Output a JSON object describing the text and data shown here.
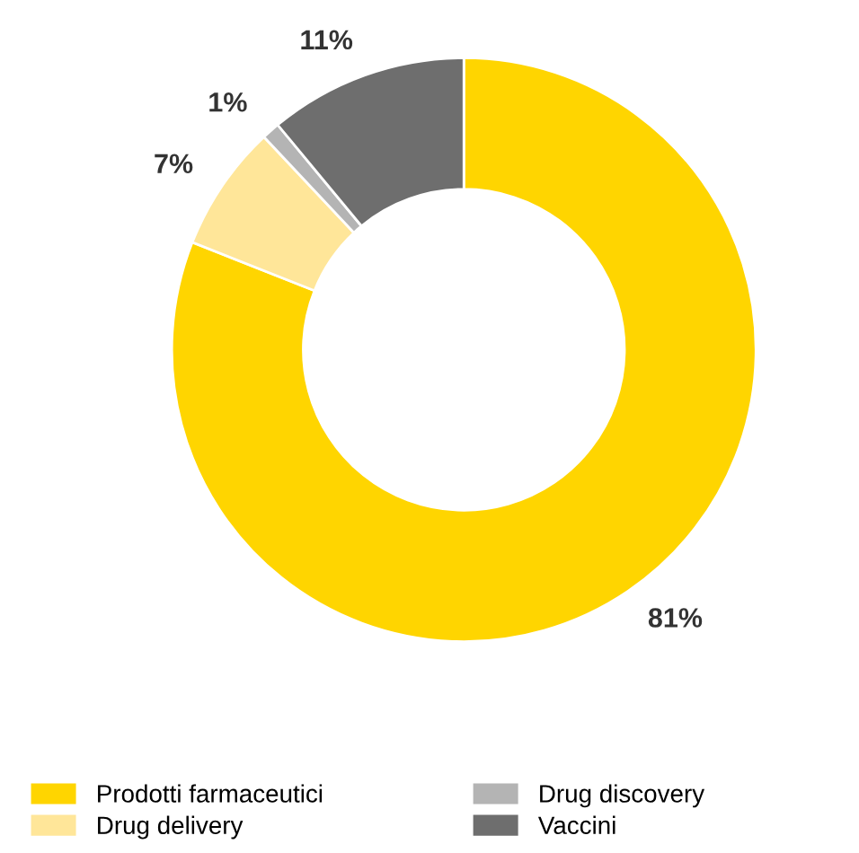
{
  "chart_data": {
    "type": "donut",
    "categories": [
      "Prodotti farmaceutici",
      "Drug delivery",
      "Drug discovery",
      "Vaccini"
    ],
    "values": [
      81,
      7,
      1,
      11
    ],
    "colors": [
      "#ffd500",
      "#ffe699",
      "#b4b4b4",
      "#6e6e6e"
    ],
    "value_labels": [
      "81%",
      "7%",
      "1%",
      "11%"
    ],
    "legend": "bottom"
  }
}
